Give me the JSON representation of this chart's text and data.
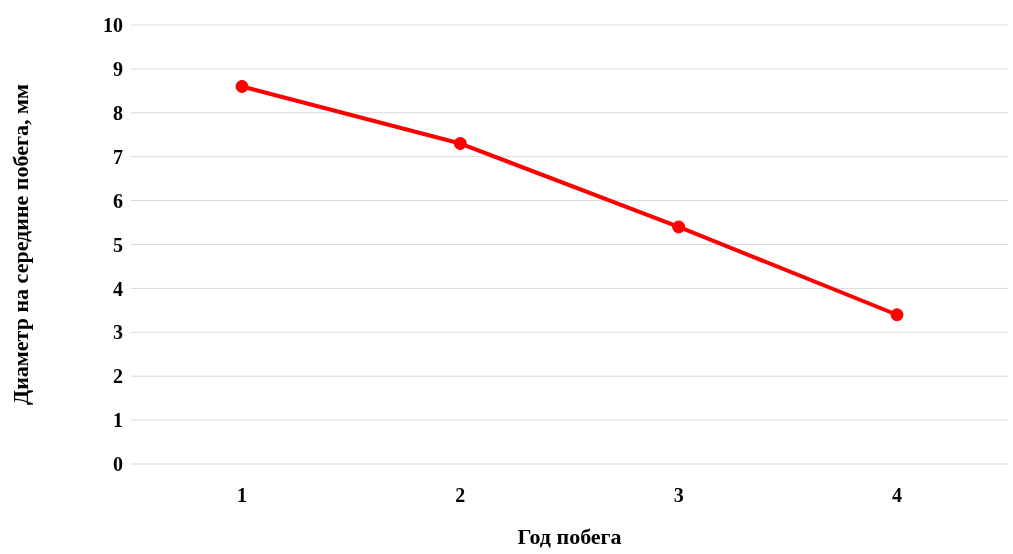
{
  "chart_data": {
    "type": "line",
    "xlabel": "Год побега",
    "ylabel": "Диаметр на середине побега, мм",
    "categories": [
      "1",
      "2",
      "3",
      "4"
    ],
    "series": [
      {
        "color": "#ff0000",
        "values": [
          8.6,
          7.3,
          5.4,
          3.4
        ]
      }
    ],
    "ylim": [
      0,
      10
    ],
    "yticks": [
      0,
      1,
      2,
      3,
      4,
      5,
      6,
      7,
      8,
      9,
      10
    ],
    "grid": "y",
    "marker": "circle",
    "line_style": "solid"
  }
}
